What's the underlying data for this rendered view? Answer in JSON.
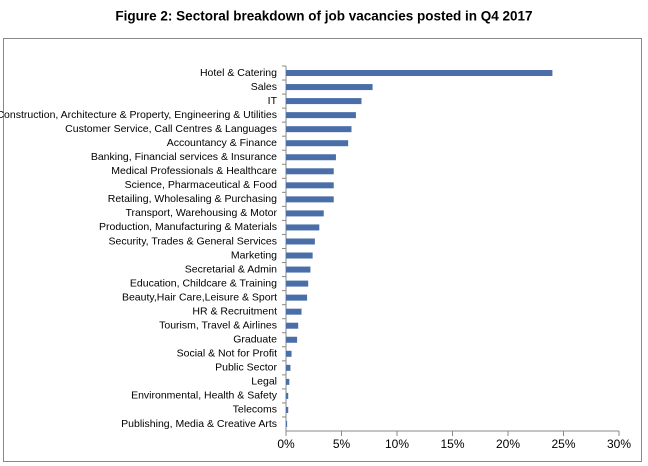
{
  "chart_data": {
    "type": "bar",
    "orientation": "horizontal",
    "title": "Figure 2: Sectoral breakdown of job vacancies posted in Q4 2017",
    "categories": [
      "Hotel & Catering",
      "Sales",
      "IT",
      "Construction, Architecture & Property, Engineering & Utilities",
      "Customer Service, Call Centres & Languages",
      "Accountancy & Finance",
      "Banking, Financial services & Insurance",
      "Medical Professionals & Healthcare",
      "Science, Pharmaceutical & Food",
      "Retailing, Wholesaling & Purchasing",
      "Transport, Warehousing & Motor",
      "Production, Manufacturing & Materials",
      "Security, Trades & General Services",
      "Marketing",
      "Secretarial & Admin",
      "Education, Childcare & Training",
      "Beauty,Hair Care,Leisure & Sport",
      "HR & Recruitment",
      "Tourism, Travel & Airlines",
      "Graduate",
      "Social & Not for Profit",
      "Public Sector",
      "Legal",
      "Environmental, Health & Safety",
      "Telecoms",
      "Publishing, Media & Creative Arts"
    ],
    "values": [
      24.0,
      7.8,
      6.8,
      6.3,
      5.9,
      5.6,
      4.5,
      4.3,
      4.3,
      4.3,
      3.4,
      3.0,
      2.6,
      2.4,
      2.2,
      2.0,
      1.9,
      1.4,
      1.1,
      1.0,
      0.5,
      0.4,
      0.3,
      0.2,
      0.2,
      0.1
    ],
    "color": "#4a6ea8",
    "xlim": [
      0,
      30
    ],
    "xticks": [
      {
        "value": 0,
        "label": "0%"
      },
      {
        "value": 5,
        "label": "5%"
      },
      {
        "value": 10,
        "label": "10%"
      },
      {
        "value": 15,
        "label": "15%"
      },
      {
        "value": 20,
        "label": "20%"
      },
      {
        "value": 25,
        "label": "25%"
      },
      {
        "value": 30,
        "label": "30%"
      }
    ],
    "grid": false
  }
}
